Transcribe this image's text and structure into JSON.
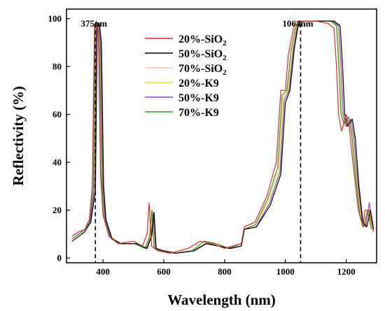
{
  "chart_data": {
    "type": "line",
    "xlabel": "Wavelength (nm)",
    "ylabel": "Reflectivity (%)",
    "xlim": [
      280,
      1300
    ],
    "ylim": [
      -2,
      104
    ],
    "xticks": [
      400,
      600,
      800,
      1000,
      1200
    ],
    "yticks": [
      0,
      20,
      40,
      60,
      80,
      100
    ],
    "legend_position": "top-center",
    "annotations": [
      {
        "label": "375nm",
        "x": 375
      },
      {
        "label": "1064nm",
        "x": 1050
      }
    ],
    "series": [
      {
        "name": "20%-SiO2",
        "base": "20%-SiO",
        "sub": "2",
        "color": "#e8262a",
        "x": [
          298,
          320,
          340,
          355,
          365,
          372,
          378,
          385,
          392,
          400,
          420,
          450,
          500,
          530,
          545,
          552,
          560,
          580,
          620,
          680,
          720,
          760,
          800,
          855,
          865,
          900,
          940,
          970,
          985,
          1000,
          1010,
          1025,
          1030,
          1040,
          1060,
          1100,
          1140,
          1160,
          1168,
          1175,
          1185,
          1200,
          1210,
          1222,
          1240,
          1255,
          1262,
          1275,
          1290
        ],
        "y": [
          9,
          11,
          12,
          16,
          30,
          97,
          99,
          93,
          35,
          18,
          9,
          6,
          7,
          5,
          10,
          23,
          5,
          3,
          2,
          4,
          7,
          6,
          4,
          6,
          13,
          15,
          26,
          40,
          70,
          70,
          85,
          95,
          98,
          99,
          99,
          99,
          98,
          96,
          80,
          60,
          53,
          60,
          55,
          40,
          20,
          13,
          20,
          20,
          11
        ]
      },
      {
        "name": "50%-SiO2",
        "base": "50%-SiO",
        "sub": "2",
        "color": "#000000",
        "x": [
          298,
          320,
          340,
          360,
          375,
          381,
          388,
          395,
          402,
          410,
          430,
          460,
          510,
          545,
          560,
          568,
          575,
          600,
          640,
          700,
          740,
          780,
          820,
          855,
          865,
          905,
          950,
          985,
          1000,
          1015,
          1030,
          1042,
          1050,
          1060,
          1080,
          1120,
          1160,
          1180,
          1188,
          1195,
          1205,
          1220,
          1230,
          1242,
          1255,
          1268,
          1280,
          1290
        ],
        "y": [
          7,
          9,
          11,
          15,
          28,
          97,
          98,
          90,
          30,
          16,
          8,
          6,
          6,
          4,
          9,
          19,
          4,
          3,
          2,
          3,
          6,
          5,
          4,
          5,
          12,
          13,
          22,
          35,
          65,
          70,
          88,
          97,
          99,
          99,
          99,
          99,
          99,
          97,
          80,
          60,
          55,
          58,
          50,
          30,
          15,
          13,
          20,
          12
        ]
      },
      {
        "name": "70%-SiO2",
        "base": "70%-SiO",
        "sub": "2",
        "color": "#f5c2b8",
        "x": [
          298,
          320,
          340,
          358,
          370,
          376,
          383,
          390,
          398,
          406,
          425,
          455,
          505,
          540,
          555,
          563,
          570,
          595,
          635,
          695,
          735,
          775,
          815,
          855,
          865,
          902,
          945,
          978,
          992,
          1008,
          1022,
          1035,
          1045,
          1060,
          1100,
          1150,
          1170,
          1178,
          1185,
          1195,
          1210,
          1220,
          1232,
          1248,
          1260,
          1272,
          1285
        ],
        "y": [
          8,
          10,
          12,
          15,
          29,
          96,
          98,
          91,
          32,
          17,
          9,
          6,
          6,
          4,
          9,
          20,
          4,
          3,
          2,
          3,
          6,
          6,
          4,
          6,
          12,
          14,
          24,
          37,
          67,
          70,
          86,
          96,
          98,
          99,
          99,
          99,
          97,
          80,
          60,
          55,
          58,
          52,
          35,
          18,
          13,
          20,
          12
        ]
      },
      {
        "name": "20%-K9",
        "base": "20%-K9",
        "sub": "",
        "color": "#f2e020",
        "x": [
          298,
          320,
          340,
          358,
          370,
          376,
          383,
          390,
          398,
          406,
          425,
          455,
          505,
          540,
          555,
          563,
          570,
          595,
          635,
          695,
          735,
          775,
          815,
          855,
          865,
          902,
          945,
          978,
          992,
          1008,
          1022,
          1035,
          1045,
          1060,
          1100,
          1150,
          1170,
          1178,
          1185,
          1195,
          1210,
          1220,
          1232,
          1248,
          1260,
          1272,
          1285
        ],
        "y": [
          8,
          10,
          12,
          15,
          29,
          96,
          98,
          91,
          32,
          17,
          9,
          6,
          6,
          4,
          9,
          20,
          4,
          3,
          2,
          3,
          6,
          6,
          4,
          6,
          12,
          14,
          24,
          37,
          67,
          70,
          86,
          96,
          98,
          99,
          99,
          99,
          97,
          80,
          60,
          55,
          58,
          52,
          35,
          18,
          13,
          20,
          12
        ]
      },
      {
        "name": "50%-K9",
        "base": "50%-K9",
        "sub": "",
        "color": "#8a3dd6",
        "x": [
          298,
          320,
          340,
          358,
          372,
          378,
          385,
          392,
          400,
          408,
          428,
          458,
          508,
          543,
          558,
          566,
          573,
          598,
          638,
          698,
          738,
          778,
          818,
          855,
          865,
          904,
          948,
          982,
          996,
          1012,
          1026,
          1038,
          1048,
          1060,
          1100,
          1155,
          1175,
          1183,
          1190,
          1200,
          1215,
          1225,
          1237,
          1252,
          1264,
          1276,
          1288
        ],
        "y": [
          8,
          10,
          12,
          15,
          29,
          97,
          98,
          91,
          31,
          16,
          8,
          6,
          6,
          4,
          9,
          19,
          4,
          3,
          2,
          3,
          6,
          5,
          4,
          5,
          12,
          13,
          23,
          36,
          66,
          70,
          87,
          96,
          99,
          99,
          99,
          99,
          97,
          80,
          60,
          55,
          58,
          51,
          33,
          16,
          13,
          23,
          12
        ]
      },
      {
        "name": "70%-K9",
        "base": "70%-K9",
        "sub": "",
        "color": "#2a9a2a",
        "x": [
          298,
          320,
          340,
          356,
          368,
          374,
          381,
          388,
          396,
          404,
          423,
          453,
          503,
          538,
          553,
          561,
          568,
          593,
          633,
          693,
          733,
          773,
          813,
          855,
          865,
          902,
          943,
          975,
          989,
          1005,
          1018,
          1032,
          1042,
          1060,
          1100,
          1148,
          1168,
          1176,
          1183,
          1193,
          1208,
          1218,
          1230,
          1245,
          1258,
          1270,
          1283
        ],
        "y": [
          8,
          10,
          12,
          15,
          29,
          96,
          98,
          91,
          32,
          17,
          9,
          6,
          6,
          4,
          9,
          20,
          4,
          3,
          2,
          3,
          7,
          6,
          4,
          6,
          12,
          14,
          25,
          38,
          68,
          70,
          86,
          96,
          98,
          99,
          99,
          99,
          97,
          80,
          60,
          56,
          59,
          52,
          35,
          18,
          13,
          20,
          12
        ]
      }
    ]
  }
}
